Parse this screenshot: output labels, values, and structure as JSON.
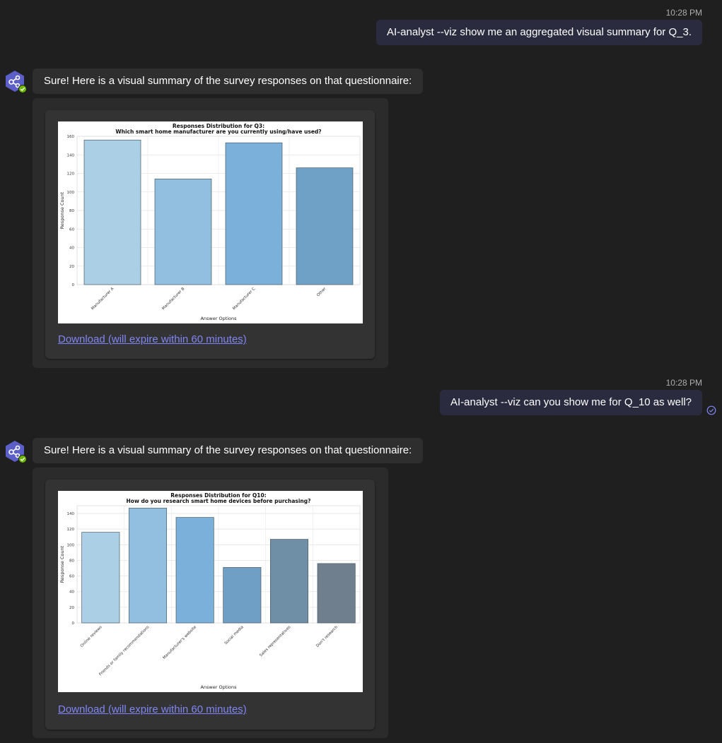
{
  "messages": [
    {
      "time": "10:28 PM",
      "text": "AI-analyst --viz show me an aggregated visual summary for Q_3."
    },
    {
      "time": "10:28 PM",
      "text": "AI-analyst --viz can you show me for Q_10 as well?"
    }
  ],
  "bot_replies": [
    {
      "text": "Sure! Here is a visual summary of the survey responses on that questionnaire:",
      "download_label": "Download (will expire within 60 minutes)"
    },
    {
      "text": "Sure! Here is a visual summary of the survey responses on that questionnaire:",
      "download_label": "Download (will expire within 60 minutes)"
    }
  ],
  "icons": {
    "bot_avatar": "share-nodes-icon",
    "bot_status": "check-badge-icon",
    "read_receipt": "check-circle-icon"
  },
  "colors": {
    "user_bubble": "#2b2b40",
    "bot_bubble": "#2e2e2e",
    "link": "#7f85f5",
    "avatar": "#5b5fc7",
    "status": "#6bb700"
  },
  "chart_data": [
    {
      "type": "bar",
      "title": "Responses Distribution for Q3:",
      "subtitle": "Which smart home manufacturer are you currently using/have used?",
      "xlabel": "Answer Options",
      "ylabel": "Response Count",
      "categories": [
        "Manufacturer A",
        "Manufacturer B",
        "Manufacturer C",
        "Other"
      ],
      "values": [
        156,
        114,
        153,
        126
      ],
      "ylim": [
        0,
        160
      ],
      "yticks": [
        0,
        20,
        40,
        60,
        80,
        100,
        120,
        140,
        160
      ],
      "bar_colors": [
        "#abcfe5",
        "#92bfdf",
        "#7ab0d9",
        "#6fa0c6"
      ],
      "grid": true
    },
    {
      "type": "bar",
      "title": "Responses Distribution for Q10:",
      "subtitle": "How do you research smart home devices before purchasing?",
      "xlabel": "Answer Options",
      "ylabel": "Response Count",
      "categories": [
        "Online reviews",
        "Friends or family recommendations",
        "Manufacturer's website",
        "Social media",
        "Sales representatives",
        "Don't research"
      ],
      "values": [
        116,
        147,
        135,
        71,
        107,
        76
      ],
      "ylim": [
        0,
        150
      ],
      "yticks": [
        0,
        20,
        40,
        60,
        80,
        100,
        120,
        140
      ],
      "bar_colors": [
        "#abcfe5",
        "#92bfdf",
        "#7ab0d9",
        "#6f9fc5",
        "#6f8fa6",
        "#6f7f8e"
      ],
      "grid": true
    }
  ]
}
